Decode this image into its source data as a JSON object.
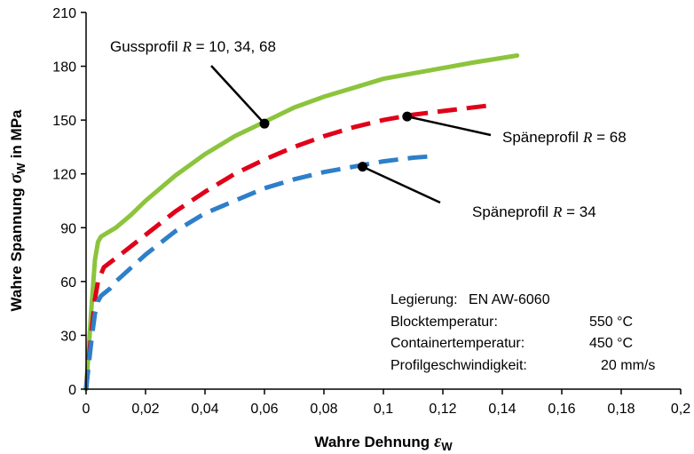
{
  "chart_data": {
    "type": "line",
    "xlabel": "Wahre Dehnung",
    "xlabel_symbol": "ε",
    "xlabel_subscript": "W",
    "ylabel": "Wahre Spannung",
    "ylabel_symbol": "σ",
    "ylabel_subscript": "W",
    "ylabel_unit": "in MPa",
    "xlim": [
      0,
      0.2
    ],
    "ylim": [
      0,
      210
    ],
    "xticks": [
      "0",
      "0,02",
      "0,04",
      "0,06",
      "0,08",
      "0,1",
      "0,12",
      "0,14",
      "0,16",
      "0,18",
      "0,2"
    ],
    "yticks": [
      "0",
      "30",
      "60",
      "90",
      "120",
      "150",
      "180",
      "210"
    ],
    "grid": false,
    "series": [
      {
        "name": "Gussprofil R = 10, 34, 68",
        "color": "#8cc43c",
        "style": "solid",
        "x": [
          0,
          0.001,
          0.002,
          0.003,
          0.004,
          0.005,
          0.007,
          0.01,
          0.015,
          0.02,
          0.03,
          0.04,
          0.05,
          0.06,
          0.07,
          0.08,
          0.09,
          0.1,
          0.11,
          0.12,
          0.13,
          0.145
        ],
        "y": [
          0,
          25,
          50,
          72,
          82,
          85,
          87,
          90,
          97,
          105,
          119,
          131,
          141,
          149,
          157,
          163,
          168,
          173,
          176,
          179,
          182,
          186
        ]
      },
      {
        "name": "Späneprofil R = 68",
        "color": "#e0001a",
        "style": "dash",
        "x": [
          0,
          0.001,
          0.002,
          0.003,
          0.004,
          0.006,
          0.01,
          0.02,
          0.03,
          0.04,
          0.05,
          0.06,
          0.07,
          0.08,
          0.09,
          0.1,
          0.11,
          0.12,
          0.135
        ],
        "y": [
          0,
          18,
          35,
          50,
          60,
          68,
          73,
          86,
          99,
          110,
          120,
          128,
          135,
          141,
          146,
          150,
          153,
          155,
          158
        ]
      },
      {
        "name": "Späneprofil R = 34",
        "color": "#2e7fc9",
        "style": "dash",
        "x": [
          0,
          0.001,
          0.002,
          0.003,
          0.004,
          0.005,
          0.008,
          0.01,
          0.02,
          0.03,
          0.04,
          0.05,
          0.06,
          0.07,
          0.08,
          0.09,
          0.1,
          0.11,
          0.118
        ],
        "y": [
          0,
          15,
          30,
          42,
          49,
          52,
          56,
          60,
          75,
          88,
          98,
          105,
          112,
          117,
          121,
          124,
          127,
          129,
          130
        ]
      }
    ],
    "annotations": [
      {
        "name": "cast",
        "text": "Gussprofil",
        "symbol": "R",
        "rest": " = 10, 34, 68",
        "point": [
          0.06,
          148
        ]
      },
      {
        "name": "chips68",
        "text": "Späneprofil",
        "symbol": "R",
        "rest": " = 68",
        "point": [
          0.108,
          152
        ]
      },
      {
        "name": "chips34",
        "text": "Späneprofil",
        "symbol": "R",
        "rest": " = 34",
        "point": [
          0.093,
          124
        ]
      }
    ],
    "info_box": [
      {
        "label": "Legierung:",
        "value": "EN AW-6060"
      },
      {
        "label": "Blocktemperatur:",
        "value": "550 °C"
      },
      {
        "label": "Containertemperatur:",
        "value": "450 °C"
      },
      {
        "label": "Profilgeschwindigkeit:",
        "value": "20 mm/s"
      }
    ]
  }
}
